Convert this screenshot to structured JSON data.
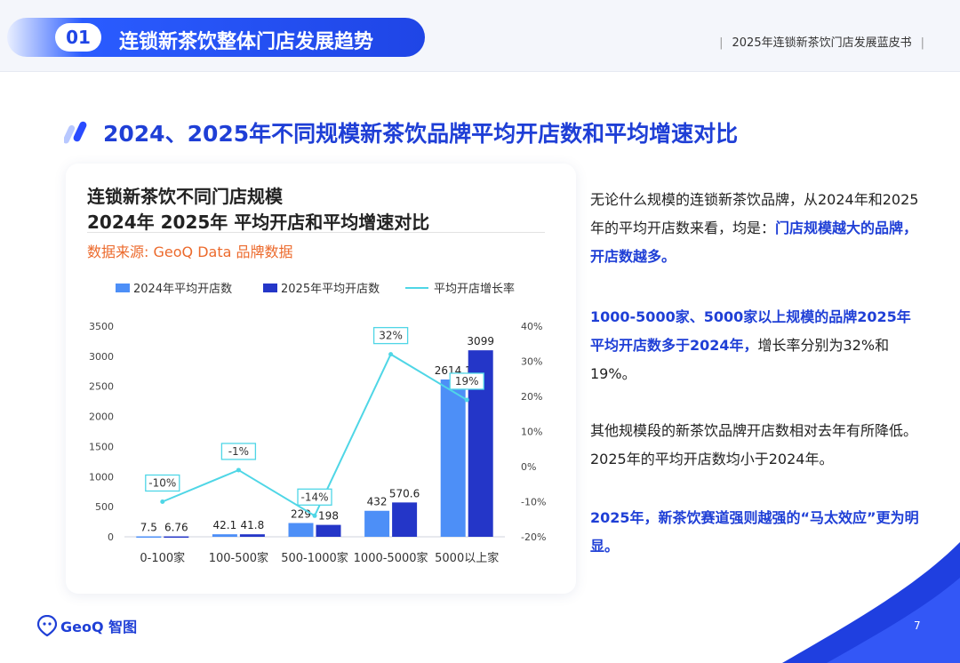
{
  "header": {
    "section_number": "01",
    "section_title": "连锁新茶饮整体门店发展趋势",
    "report_title": "2025年连锁新茶饮门店发展蓝皮书",
    "divider_left": "|",
    "divider_right": "|"
  },
  "page": {
    "title": "2024、2025年不同规模新茶饮品牌平均开店数和平均增速对比",
    "page_number": "7",
    "logo_text": "GeoQ 智图"
  },
  "chart_card": {
    "title_line1": "连锁新茶饮不同门店规模",
    "title_line2": "2024年 2025年 平均开店和平均增速对比",
    "source": "数据来源: GeoQ Data 品牌数据"
  },
  "chart_data": {
    "type": "bar",
    "categories": [
      "0-100家",
      "100-500家",
      "500-1000家",
      "1000-5000家",
      "5000以上家"
    ],
    "series": [
      {
        "name": "2024年平均开店数",
        "type": "bar",
        "axis": "left",
        "color": "#4d8ff7",
        "values": [
          7.5,
          42.1,
          229,
          432,
          2614.1
        ],
        "labels": [
          "7.5",
          "42.1",
          "229",
          "432",
          "2614.1"
        ]
      },
      {
        "name": "2025年平均开店数",
        "type": "bar",
        "axis": "left",
        "color": "#2436c8",
        "values": [
          6.76,
          41.8,
          198,
          570.6,
          3099
        ],
        "labels": [
          "6.76",
          "41.8",
          "198",
          "570.6",
          "3099"
        ]
      },
      {
        "name": "平均开店增长率",
        "type": "line",
        "axis": "right",
        "color": "#4fd6e6",
        "values": [
          -10,
          -1,
          -14,
          32,
          19
        ],
        "labels": [
          "-10%",
          "-1%",
          "-14%",
          "32%",
          "19%"
        ]
      }
    ],
    "y_left": {
      "min": 0,
      "max": 3500,
      "ticks": [
        "0",
        "500",
        "1000",
        "1500",
        "2000",
        "2500",
        "3000",
        "3500"
      ]
    },
    "y_right": {
      "min": -20,
      "max": 40,
      "ticks": [
        "-20%",
        "-10%",
        "0%",
        "10%",
        "20%",
        "30%",
        "40%"
      ]
    },
    "grid": false,
    "legend": "top"
  },
  "text": {
    "p1_a": "无论什么规模的连锁新茶饮品牌，从2024年和2025年的平均开店数来看，均是：",
    "p1_b": "门店规模越大的品牌，开店数越多。",
    "p2_a": "1000-5000家、5000家以上规模的品牌2025年平均开店数多于2024年，",
    "p2_b": "增长率分别为32%和19%。",
    "p3": "其他规模段的新茶饮品牌开店数相对去年有所降低。2025年的平均开店数均小于2024年。",
    "p4": "2025年，新茶饮赛道强则越强的“马太效应”更为明显。"
  },
  "colors": {
    "brand_blue": "#1f3fd6",
    "source_orange": "#ec6a2c",
    "bar_2024": "#4d8ff7",
    "bar_2025": "#2436c8",
    "growth_line": "#4fd6e6"
  }
}
